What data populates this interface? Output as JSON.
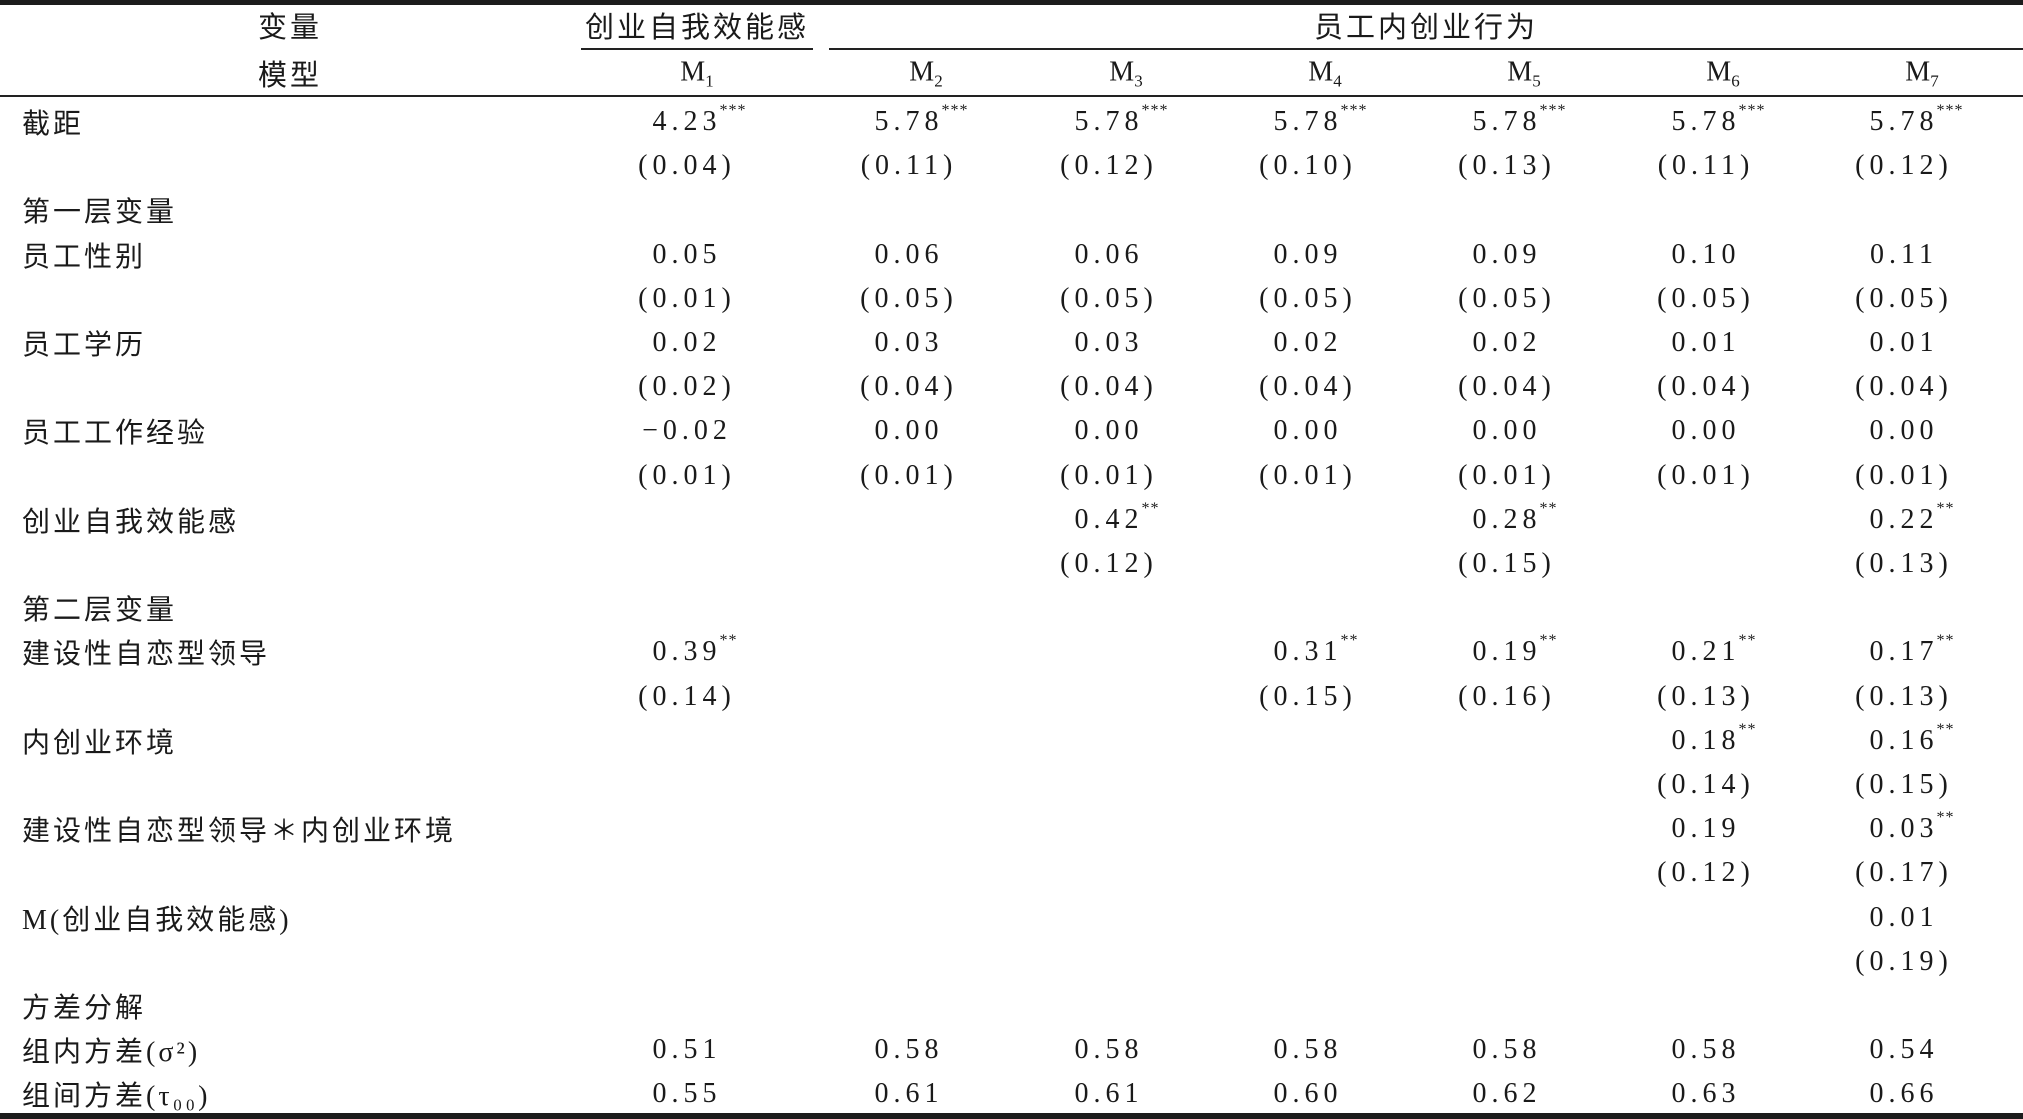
{
  "header": {
    "variable_label": "变量",
    "model_label": "模型",
    "group1": "创业自我效能感",
    "group2": "员工内创业行为",
    "models": [
      {
        "base": "M",
        "sub": "1"
      },
      {
        "base": "M",
        "sub": "2"
      },
      {
        "base": "M",
        "sub": "3"
      },
      {
        "base": "M",
        "sub": "4"
      },
      {
        "base": "M",
        "sub": "5"
      },
      {
        "base": "M",
        "sub": "6"
      },
      {
        "base": "M",
        "sub": "7"
      }
    ]
  },
  "rows": [
    {
      "label": "截距",
      "values": [
        {
          "v": "4.23",
          "sig": "***"
        },
        {
          "v": "5.78",
          "sig": "***"
        },
        {
          "v": "5.78",
          "sig": "***"
        },
        {
          "v": "5.78",
          "sig": "***"
        },
        {
          "v": "5.78",
          "sig": "***"
        },
        {
          "v": "5.78",
          "sig": "***"
        },
        {
          "v": "5.78",
          "sig": "***"
        }
      ]
    },
    {
      "label": "",
      "values": [
        {
          "v": "(0.04)"
        },
        {
          "v": "(0.11)"
        },
        {
          "v": "(0.12)"
        },
        {
          "v": "(0.10)"
        },
        {
          "v": "(0.13)"
        },
        {
          "v": "(0.11)"
        },
        {
          "v": "(0.12)"
        }
      ]
    },
    {
      "label": "第一层变量",
      "values": []
    },
    {
      "label": "员工性别",
      "values": [
        {
          "v": "0.05"
        },
        {
          "v": "0.06"
        },
        {
          "v": "0.06"
        },
        {
          "v": "0.09"
        },
        {
          "v": "0.09"
        },
        {
          "v": "0.10"
        },
        {
          "v": "0.11"
        }
      ]
    },
    {
      "label": "",
      "values": [
        {
          "v": "(0.01)"
        },
        {
          "v": "(0.05)"
        },
        {
          "v": "(0.05)"
        },
        {
          "v": "(0.05)"
        },
        {
          "v": "(0.05)"
        },
        {
          "v": "(0.05)"
        },
        {
          "v": "(0.05)"
        }
      ]
    },
    {
      "label": "员工学历",
      "values": [
        {
          "v": "0.02"
        },
        {
          "v": "0.03"
        },
        {
          "v": "0.03"
        },
        {
          "v": "0.02"
        },
        {
          "v": "0.02"
        },
        {
          "v": "0.01"
        },
        {
          "v": "0.01"
        }
      ]
    },
    {
      "label": "",
      "values": [
        {
          "v": "(0.02)"
        },
        {
          "v": "(0.04)"
        },
        {
          "v": "(0.04)"
        },
        {
          "v": "(0.04)"
        },
        {
          "v": "(0.04)"
        },
        {
          "v": "(0.04)"
        },
        {
          "v": "(0.04)"
        }
      ]
    },
    {
      "label": "员工工作经验",
      "values": [
        {
          "v": "−0.02"
        },
        {
          "v": "0.00"
        },
        {
          "v": "0.00"
        },
        {
          "v": "0.00"
        },
        {
          "v": "0.00"
        },
        {
          "v": "0.00"
        },
        {
          "v": "0.00"
        }
      ]
    },
    {
      "label": "",
      "values": [
        {
          "v": "(0.01)"
        },
        {
          "v": "(0.01)"
        },
        {
          "v": "(0.01)"
        },
        {
          "v": "(0.01)"
        },
        {
          "v": "(0.01)"
        },
        {
          "v": "(0.01)"
        },
        {
          "v": "(0.01)"
        }
      ]
    },
    {
      "label": "创业自我效能感",
      "values": [
        null,
        null,
        {
          "v": "0.42",
          "sig": "**"
        },
        null,
        {
          "v": "0.28",
          "sig": "**"
        },
        null,
        {
          "v": "0.22",
          "sig": "**"
        }
      ]
    },
    {
      "label": "",
      "values": [
        null,
        null,
        {
          "v": "(0.12)"
        },
        null,
        {
          "v": "(0.15)"
        },
        null,
        {
          "v": "(0.13)"
        }
      ]
    },
    {
      "label": "第二层变量",
      "values": []
    },
    {
      "label": "建设性自恋型领导",
      "values": [
        {
          "v": "0.39",
          "sig": "**"
        },
        null,
        null,
        {
          "v": "0.31",
          "sig": "**"
        },
        {
          "v": "0.19",
          "sig": "**"
        },
        {
          "v": "0.21",
          "sig": "**"
        },
        {
          "v": "0.17",
          "sig": "**"
        }
      ]
    },
    {
      "label": "",
      "values": [
        {
          "v": "(0.14)"
        },
        null,
        null,
        {
          "v": "(0.15)"
        },
        {
          "v": "(0.16)"
        },
        {
          "v": "(0.13)"
        },
        {
          "v": "(0.13)"
        }
      ]
    },
    {
      "label": "内创业环境",
      "values": [
        null,
        null,
        null,
        null,
        null,
        {
          "v": "0.18",
          "sig": "**"
        },
        {
          "v": "0.16",
          "sig": "**"
        }
      ]
    },
    {
      "label": "",
      "values": [
        null,
        null,
        null,
        null,
        null,
        {
          "v": "(0.14)"
        },
        {
          "v": "(0.15)"
        }
      ]
    },
    {
      "label": "建设性自恋型领导＊内创业环境",
      "values": [
        null,
        null,
        null,
        null,
        null,
        {
          "v": "0.19"
        },
        {
          "v": "0.03",
          "sig": "**"
        }
      ]
    },
    {
      "label": "",
      "values": [
        null,
        null,
        null,
        null,
        null,
        {
          "v": "(0.12)"
        },
        {
          "v": "(0.17)"
        }
      ]
    },
    {
      "label": "M(创业自我效能感)",
      "values": [
        null,
        null,
        null,
        null,
        null,
        null,
        {
          "v": "0.01"
        }
      ]
    },
    {
      "label": "",
      "values": [
        null,
        null,
        null,
        null,
        null,
        null,
        {
          "v": "(0.19)"
        }
      ]
    },
    {
      "label": "方差分解",
      "values": []
    },
    {
      "label": "组内方差(σ²)",
      "values": [
        {
          "v": "0.51"
        },
        {
          "v": "0.58"
        },
        {
          "v": "0.58"
        },
        {
          "v": "0.58"
        },
        {
          "v": "0.58"
        },
        {
          "v": "0.58"
        },
        {
          "v": "0.54"
        }
      ]
    },
    {
      "label": "组间方差(τ₀₀)",
      "values": [
        {
          "v": "0.55"
        },
        {
          "v": "0.61"
        },
        {
          "v": "0.61"
        },
        {
          "v": "0.60"
        },
        {
          "v": "0.62"
        },
        {
          "v": "0.63"
        },
        {
          "v": "0.66"
        }
      ]
    }
  ]
}
